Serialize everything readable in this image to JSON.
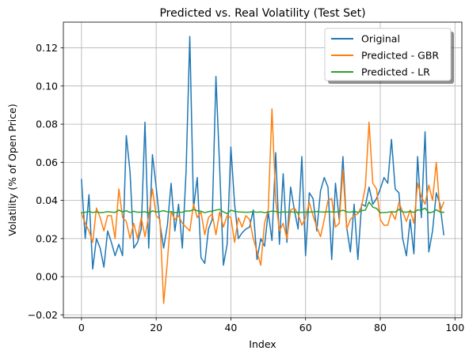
{
  "chart_data": {
    "type": "line",
    "title": "Predicted vs. Real Volatility (Test Set)",
    "xlabel": "Index",
    "ylabel": "Volatility (% of Open Price)",
    "xlim": [
      -4.85,
      101.85
    ],
    "ylim": [
      -0.0215,
      0.1335
    ],
    "xticks": [
      0,
      20,
      40,
      60,
      80,
      100
    ],
    "xtick_labels": [
      "0",
      "20",
      "40",
      "60",
      "80",
      "100"
    ],
    "yticks": [
      -0.02,
      0.0,
      0.02,
      0.04,
      0.06,
      0.08,
      0.1,
      0.12
    ],
    "ytick_labels": [
      "−0.02",
      "0.00",
      "0.02",
      "0.04",
      "0.06",
      "0.08",
      "0.10",
      "0.12"
    ],
    "grid": true,
    "legend_position": "top-right",
    "series": [
      {
        "name": "Original",
        "color": "#1f77b4",
        "values": [
          0.051,
          0.02,
          0.043,
          0.004,
          0.02,
          0.015,
          0.005,
          0.024,
          0.018,
          0.011,
          0.017,
          0.011,
          0.074,
          0.055,
          0.015,
          0.018,
          0.025,
          0.081,
          0.015,
          0.064,
          0.047,
          0.028,
          0.015,
          0.027,
          0.049,
          0.024,
          0.038,
          0.015,
          0.055,
          0.126,
          0.036,
          0.052,
          0.01,
          0.007,
          0.025,
          0.03,
          0.105,
          0.057,
          0.006,
          0.017,
          0.068,
          0.038,
          0.02,
          0.023,
          0.025,
          0.026,
          0.035,
          0.009,
          0.02,
          0.016,
          0.034,
          0.019,
          0.065,
          0.017,
          0.054,
          0.018,
          0.047,
          0.035,
          0.025,
          0.063,
          0.011,
          0.044,
          0.041,
          0.024,
          0.045,
          0.052,
          0.047,
          0.009,
          0.049,
          0.03,
          0.063,
          0.026,
          0.013,
          0.038,
          0.009,
          0.038,
          0.037,
          0.047,
          0.038,
          0.041,
          0.046,
          0.052,
          0.049,
          0.072,
          0.046,
          0.044,
          0.02,
          0.011,
          0.03,
          0.012,
          0.063,
          0.031,
          0.076,
          0.013,
          0.024,
          0.044,
          0.038,
          0.022
        ]
      },
      {
        "name": "Predicted - GBR",
        "color": "#ff7f0e",
        "values": [
          0.033,
          0.028,
          0.024,
          0.018,
          0.036,
          0.031,
          0.024,
          0.032,
          0.032,
          0.02,
          0.046,
          0.031,
          0.029,
          0.02,
          0.028,
          0.02,
          0.031,
          0.021,
          0.032,
          0.046,
          0.032,
          0.03,
          -0.014,
          0.008,
          0.034,
          0.03,
          0.032,
          0.028,
          0.026,
          0.024,
          0.038,
          0.031,
          0.034,
          0.022,
          0.031,
          0.033,
          0.022,
          0.034,
          0.026,
          0.032,
          0.031,
          0.018,
          0.031,
          0.026,
          0.032,
          0.03,
          0.02,
          0.013,
          0.006,
          0.028,
          0.035,
          0.088,
          0.04,
          0.024,
          0.028,
          0.02,
          0.035,
          0.036,
          0.033,
          0.027,
          0.031,
          0.039,
          0.032,
          0.026,
          0.021,
          0.03,
          0.04,
          0.041,
          0.026,
          0.028,
          0.056,
          0.025,
          0.03,
          0.032,
          0.033,
          0.037,
          0.047,
          0.081,
          0.049,
          0.046,
          0.03,
          0.027,
          0.027,
          0.034,
          0.03,
          0.039,
          0.034,
          0.029,
          0.035,
          0.028,
          0.049,
          0.042,
          0.038,
          0.048,
          0.04,
          0.06,
          0.034,
          0.039
        ]
      },
      {
        "name": "Predicted - LR",
        "color": "#2ca02c",
        "values": [
          0.0336,
          0.0338,
          0.0342,
          0.0337,
          0.034,
          0.0336,
          0.0338,
          0.0341,
          0.0339,
          0.0337,
          0.0349,
          0.034,
          0.0346,
          0.0337,
          0.0343,
          0.0338,
          0.0339,
          0.0341,
          0.0333,
          0.0345,
          0.0339,
          0.0342,
          0.0346,
          0.034,
          0.0341,
          0.0336,
          0.0339,
          0.0338,
          0.0345,
          0.0344,
          0.0352,
          0.0346,
          0.0343,
          0.0336,
          0.0341,
          0.0344,
          0.0349,
          0.0353,
          0.034,
          0.0331,
          0.0349,
          0.0343,
          0.034,
          0.0339,
          0.0338,
          0.0339,
          0.0341,
          0.0338,
          0.034,
          0.0336,
          0.034,
          0.0344,
          0.0342,
          0.0337,
          0.034,
          0.0339,
          0.0341,
          0.0338,
          0.0338,
          0.0338,
          0.0339,
          0.0339,
          0.034,
          0.0342,
          0.034,
          0.0339,
          0.0341,
          0.034,
          0.0339,
          0.0342,
          0.0349,
          0.034,
          0.0338,
          0.0344,
          0.0337,
          0.0346,
          0.0349,
          0.0392,
          0.0365,
          0.0358,
          0.0335,
          0.0337,
          0.0338,
          0.0341,
          0.0339,
          0.0353,
          0.034,
          0.0338,
          0.0343,
          0.0337,
          0.035,
          0.0349,
          0.036,
          0.0335,
          0.0339,
          0.0351,
          0.0339,
          0.0338
        ]
      }
    ]
  }
}
